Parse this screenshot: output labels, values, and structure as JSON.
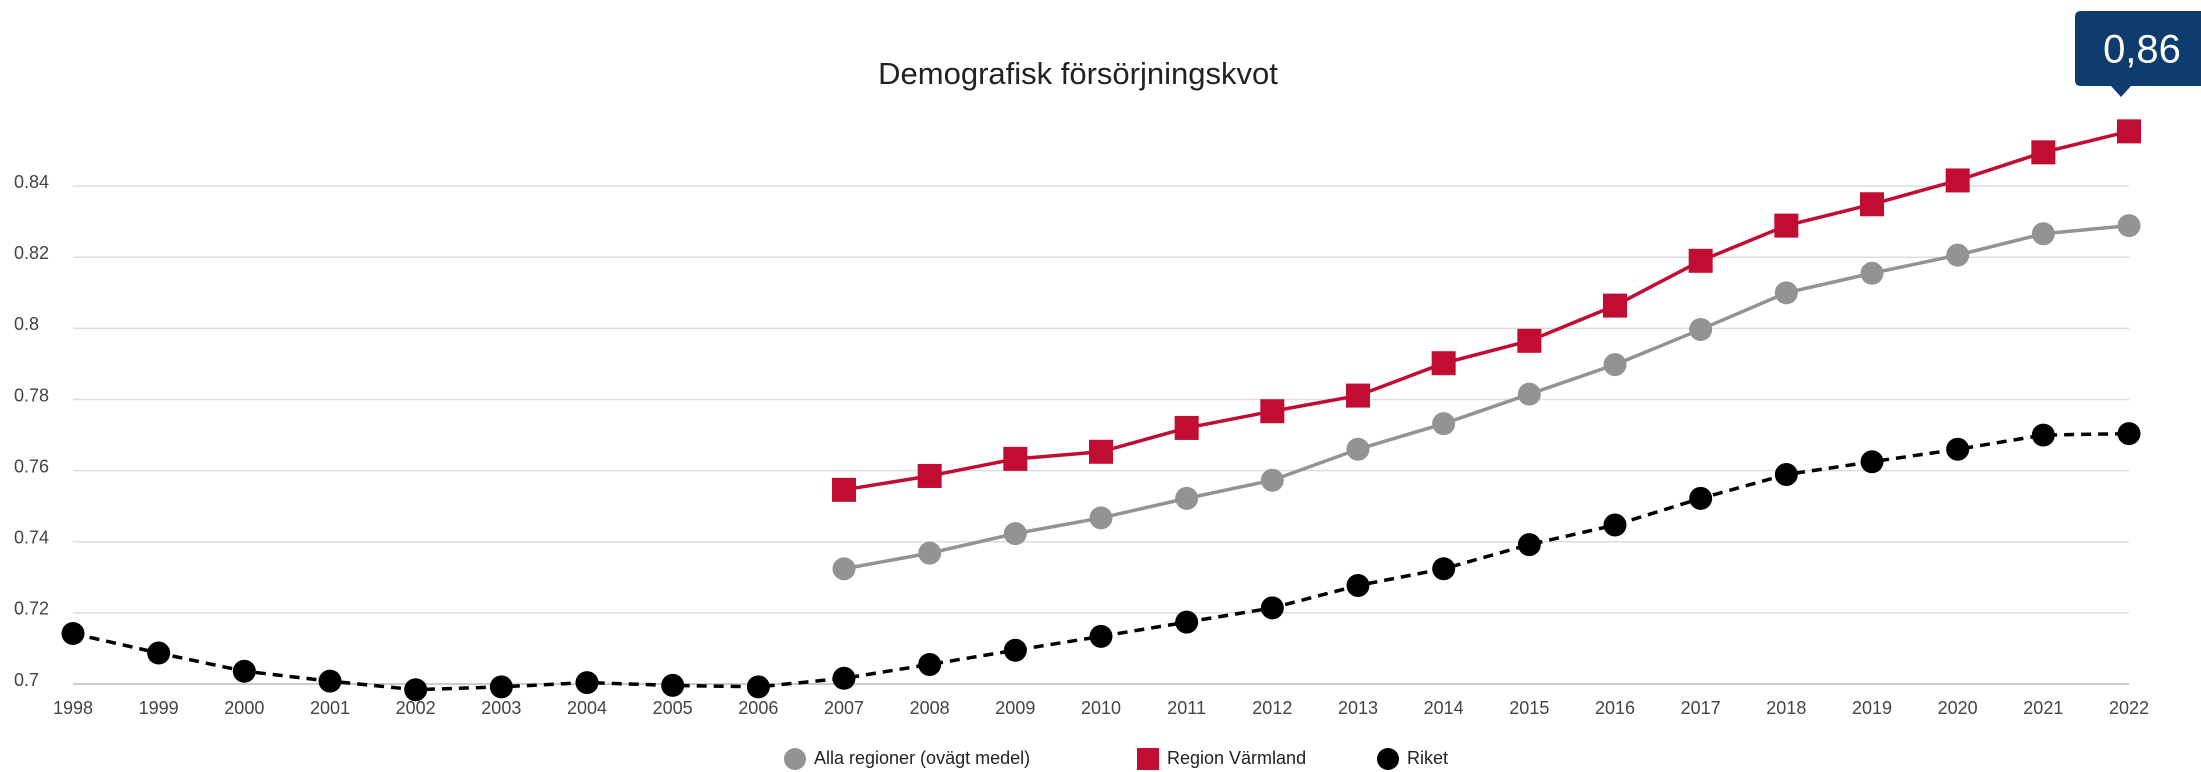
{
  "chart_data": {
    "type": "line",
    "title": "Demografisk försörjningskvot",
    "annotation": "0,86",
    "categories": [
      "1998",
      "1999",
      "2000",
      "2001",
      "2002",
      "2003",
      "2004",
      "2005",
      "2006",
      "2007",
      "2008",
      "2009",
      "2010",
      "2011",
      "2012",
      "2013",
      "2014",
      "2015",
      "2016",
      "2017",
      "2018",
      "2019",
      "2020",
      "2021",
      "2022"
    ],
    "series": [
      {
        "name": "Alla regioner (ovägt medel)",
        "color": "#939393",
        "marker": "circle",
        "dashed": false,
        "values": [
          null,
          null,
          null,
          null,
          null,
          null,
          null,
          null,
          null,
          0.7324,
          0.7368,
          0.7423,
          0.7467,
          0.7522,
          0.7573,
          0.766,
          0.7732,
          0.7815,
          0.7898,
          0.7997,
          0.81,
          0.8155,
          0.8206,
          0.8266,
          0.8289
        ]
      },
      {
        "name": "Region Värmland",
        "color": "#c00d31",
        "marker": "square",
        "dashed": false,
        "values": [
          null,
          null,
          null,
          null,
          null,
          null,
          null,
          null,
          null,
          0.7546,
          0.7585,
          0.7633,
          0.7653,
          0.772,
          0.7767,
          0.7811,
          0.7902,
          0.7965,
          0.8064,
          0.819,
          0.8289,
          0.8349,
          0.8416,
          0.8495,
          0.8554
        ]
      },
      {
        "name": "Riket",
        "color": "#000000",
        "marker": "circle",
        "dashed": true,
        "values": [
          0.7142,
          0.7087,
          0.7036,
          0.7008,
          0.6984,
          0.6992,
          0.7004,
          0.6996,
          0.6992,
          0.7016,
          0.7055,
          0.7095,
          0.7134,
          0.7174,
          0.7214,
          0.7277,
          0.7324,
          0.7392,
          0.7447,
          0.7522,
          0.7589,
          0.7625,
          0.766,
          0.77,
          0.7704
        ]
      }
    ],
    "ylim": [
      0.7,
      0.86
    ],
    "yticks": [
      0.7,
      0.72,
      0.74,
      0.76,
      0.78,
      0.8,
      0.82,
      0.84
    ],
    "grid": true
  }
}
